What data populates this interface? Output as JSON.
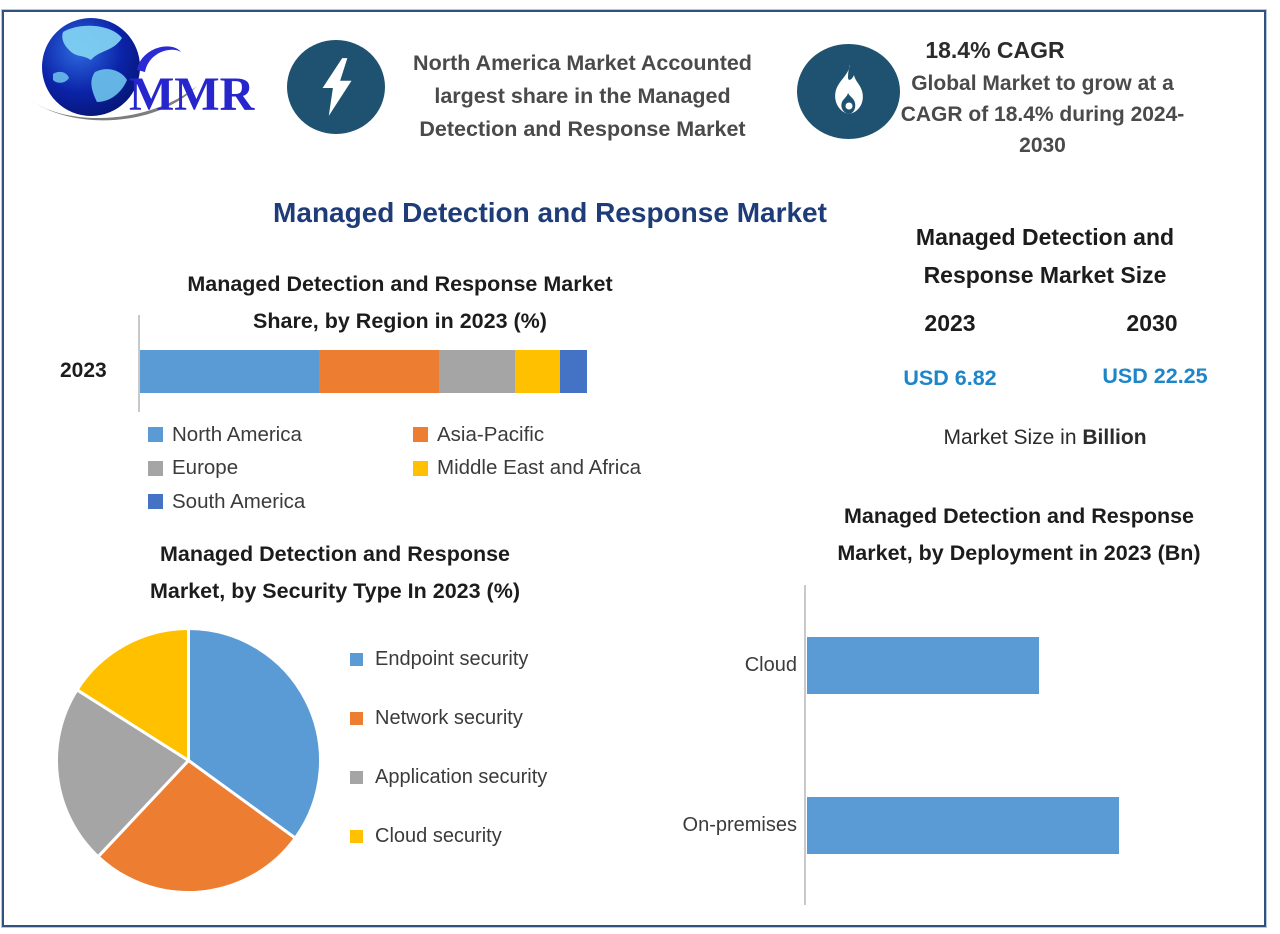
{
  "header": {
    "logo_text": "MMR",
    "banner_na": {
      "icon": "lightning-icon",
      "lines": [
        "North America Market Accounted",
        "largest share in the Managed",
        "Detection and Response Market"
      ]
    },
    "banner_cagr": {
      "icon": "flame-icon",
      "title": "18.4% CAGR",
      "lines": [
        "Global Market to grow at a",
        "CAGR of 18.4% during 2024-",
        "2030"
      ]
    }
  },
  "main_title": "Managed Detection and Response Market",
  "market_size": {
    "title_lines": [
      "Managed Detection and",
      "Response Market Size"
    ],
    "year_start": "2023",
    "year_end": "2030",
    "value_start": "USD 6.82",
    "value_end": "USD 22.25",
    "note_prefix": "Market Size in ",
    "note_bold": "Billion"
  },
  "colors": {
    "accent_navy": "#1e3c78",
    "icon_circle": "#1f5170",
    "usd_blue": "#1d85c8",
    "bar_blue": "#5b9bd5",
    "bar_orange": "#ed7d31",
    "bar_gray": "#a5a5a5",
    "bar_yellow": "#ffc000",
    "bar_darkblue": "#4472c4"
  },
  "chart_data": [
    {
      "id": "region_share",
      "type": "bar",
      "variant": "stacked-horizontal",
      "title_lines": [
        "Managed Detection and Response Market",
        "Share, by Region in 2023 (%)"
      ],
      "category": "2023",
      "unit": "%",
      "series": [
        {
          "name": "North America",
          "value": 40,
          "color": "#5b9bd5"
        },
        {
          "name": "Asia-Pacific",
          "value": 27,
          "color": "#ed7d31"
        },
        {
          "name": "Europe",
          "value": 17,
          "color": "#a5a5a5"
        },
        {
          "name": "Middle East and Africa",
          "value": 10,
          "color": "#ffc000"
        },
        {
          "name": "South America",
          "value": 6,
          "color": "#4472c4"
        }
      ],
      "legend_layout": [
        [
          "North America",
          "Asia-Pacific"
        ],
        [
          "Europe",
          "Middle East and Africa"
        ],
        [
          "South America"
        ]
      ],
      "legend_position": "bottom",
      "grid": false
    },
    {
      "id": "security_type",
      "type": "pie",
      "title_lines": [
        "Managed Detection and Response",
        "Market, by Security Type In 2023 (%)"
      ],
      "unit": "%",
      "start_angle_deg": 0,
      "direction": "clockwise",
      "slices": [
        {
          "name": "Endpoint security",
          "value": 35,
          "color": "#5b9bd5"
        },
        {
          "name": "Network security",
          "value": 27,
          "color": "#ed7d31"
        },
        {
          "name": "Application security",
          "value": 22,
          "color": "#a5a5a5"
        },
        {
          "name": "Cloud security",
          "value": 16,
          "color": "#ffc000"
        }
      ],
      "legend_position": "right",
      "grid": false
    },
    {
      "id": "deployment",
      "type": "bar",
      "variant": "horizontal",
      "title_lines": [
        "Managed Detection and Response",
        "Market, by Deployment in 2023 (Bn)"
      ],
      "categories": [
        "Cloud",
        "On-premises"
      ],
      "values": [
        2.9,
        3.9
      ],
      "unit": "Bn",
      "xlim": [
        0,
        5
      ],
      "bar_color": "#5b9bd5",
      "grid": false
    }
  ]
}
